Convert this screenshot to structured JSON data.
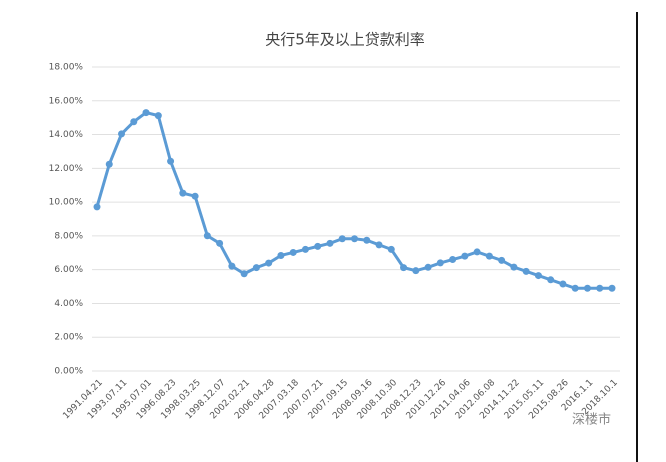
{
  "chart_data": {
    "type": "line",
    "title": "央行5年及以上贷款利率",
    "categories": [
      "1991.04.21",
      null,
      "1993.07.11",
      null,
      "1995.07.01",
      null,
      "1996.08.23",
      null,
      "1998.03.25",
      null,
      "1998.12.07",
      null,
      "2002.02.21",
      null,
      "2006.04.28",
      null,
      "2007.03.18",
      null,
      "2007.07.21",
      null,
      "2007.09.15",
      null,
      "2008.09.16",
      null,
      "2008.10.30",
      null,
      "2008.12.23",
      null,
      "2010.12.26",
      null,
      "2011.04.06",
      null,
      "2012.06.08",
      null,
      "2014.11.22",
      null,
      "2015.05.11",
      null,
      "2015.08.26",
      null,
      "2016.1.1",
      null,
      "2018.10.1"
    ],
    "series": [
      {
        "name": "央行5年及以上贷款利率",
        "color": "#5b9bd5",
        "values": [
          9.72,
          12.24,
          14.04,
          14.76,
          15.3,
          15.12,
          12.42,
          10.53,
          10.35,
          8.01,
          7.56,
          6.21,
          5.76,
          6.12,
          6.39,
          6.84,
          7.02,
          7.2,
          7.38,
          7.56,
          7.83,
          7.83,
          7.74,
          7.47,
          7.2,
          6.12,
          5.94,
          6.14,
          6.4,
          6.6,
          6.8,
          7.05,
          6.8,
          6.55,
          6.15,
          5.9,
          5.65,
          5.4,
          5.15,
          4.9,
          4.9,
          4.9,
          4.9
        ]
      }
    ],
    "ylim": [
      0,
      18
    ],
    "yticks": [
      {
        "value": 0,
        "label": "0.00%"
      },
      {
        "value": 2,
        "label": "2.00%"
      },
      {
        "value": 4,
        "label": "4.00%"
      },
      {
        "value": 6,
        "label": "6.00%"
      },
      {
        "value": 8,
        "label": "8.00%"
      },
      {
        "value": 10,
        "label": "10.00%"
      },
      {
        "value": 12,
        "label": "12.00%"
      },
      {
        "value": 14,
        "label": "14.00%"
      },
      {
        "value": 16,
        "label": "16.00%"
      },
      {
        "value": 18,
        "label": "18.00%"
      }
    ],
    "grid": true,
    "watermark": "深楼市"
  }
}
